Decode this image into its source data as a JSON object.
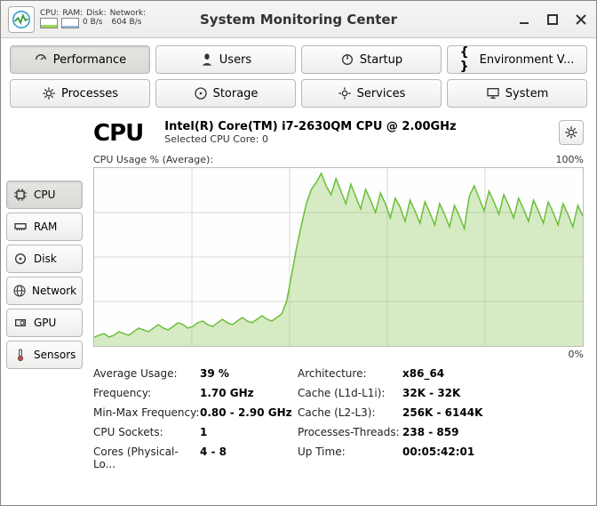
{
  "window": {
    "title": "System Monitoring Center"
  },
  "mini": {
    "labels": {
      "cpu": "CPU:",
      "ram": "RAM:",
      "disk": "Disk:",
      "net": "Network:"
    },
    "cpu_fill_pct": 35,
    "ram_fill_pct": 20,
    "disk_rate": "0 B/s",
    "net_rate": "604 B/s"
  },
  "tabs": {
    "performance": "Performance",
    "users": "Users",
    "startup": "Startup",
    "env": "Environment V...",
    "processes": "Processes",
    "storage": "Storage",
    "services": "Services",
    "system": "System"
  },
  "sidebar": {
    "cpu": "CPU",
    "ram": "RAM",
    "disk": "Disk",
    "network": "Network",
    "gpu": "GPU",
    "sensors": "Sensors"
  },
  "cpu": {
    "title": "CPU",
    "model": "Intel(R) Core(TM) i7-2630QM CPU @ 2.00GHz",
    "selected_core": "Selected CPU Core: 0",
    "chart_label": "CPU Usage % (Average):",
    "chart_max": "100%",
    "chart_min": "0%",
    "chart_data": [
      5,
      6,
      7,
      5,
      6,
      8,
      7,
      6,
      8,
      10,
      9,
      8,
      10,
      12,
      10,
      9,
      11,
      13,
      12,
      10,
      11,
      13,
      14,
      12,
      11,
      13,
      15,
      13,
      12,
      14,
      16,
      14,
      13,
      15,
      17,
      15,
      14,
      16,
      18,
      25,
      40,
      55,
      68,
      80,
      88,
      92,
      97,
      90,
      85,
      94,
      87,
      80,
      91,
      84,
      77,
      88,
      82,
      75,
      86,
      80,
      72,
      83,
      78,
      70,
      82,
      76,
      69,
      81,
      75,
      68,
      80,
      74,
      67,
      79,
      73,
      66,
      84,
      90,
      83,
      76,
      87,
      81,
      74,
      85,
      79,
      72,
      83,
      77,
      70,
      82,
      76,
      69,
      81,
      75,
      68,
      80,
      74,
      67,
      79,
      73
    ],
    "colors": {
      "line": "#6bbf3a",
      "fill": "rgba(140,200,90,0.35)",
      "grid": "#d8d8d8"
    }
  },
  "stats": {
    "avg_usage_lbl": "Average Usage:",
    "avg_usage": "39 %",
    "freq_lbl": "Frequency:",
    "freq": "1.70 GHz",
    "minmax_lbl": "Min-Max Frequency:",
    "minmax": "0.80 - 2.90 GHz",
    "sockets_lbl": "CPU Sockets:",
    "sockets": "1",
    "cores_lbl": "Cores (Physical-Lo...",
    "cores": "4 - 8",
    "arch_lbl": "Architecture:",
    "arch": "x86_64",
    "cache1_lbl": "Cache (L1d-L1i):",
    "cache1": "32K - 32K",
    "cache2_lbl": "Cache (L2-L3):",
    "cache2": "256K - 6144K",
    "pt_lbl": "Processes-Threads:",
    "pt": "238 - 859",
    "uptime_lbl": "Up Time:",
    "uptime": "00:05:42:01"
  }
}
